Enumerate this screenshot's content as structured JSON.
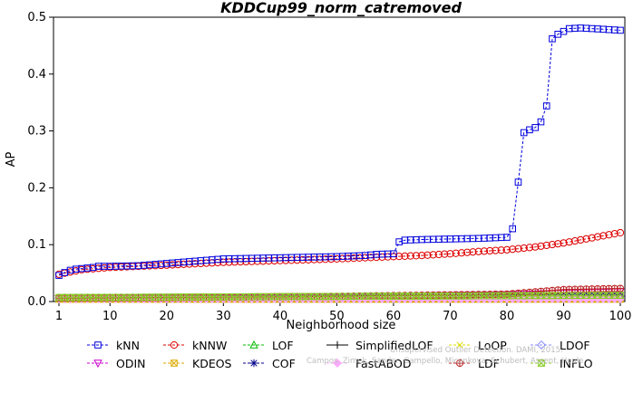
{
  "chart_data": {
    "type": "line",
    "title": "KDDCup99_norm_catremoved",
    "xlabel": "Neighborhood size",
    "ylabel": "AP",
    "xlim": [
      1,
      100
    ],
    "ylim": [
      0,
      0.5
    ],
    "x_ticks": [
      1,
      10,
      20,
      30,
      40,
      50,
      60,
      70,
      80,
      90,
      100
    ],
    "y_ticks": [
      0.0,
      0.1,
      0.2,
      0.3,
      0.4,
      0.5
    ],
    "x_tick_labels": [
      "1",
      "10",
      "20",
      "30",
      "40",
      "50",
      "60",
      "70",
      "80",
      "90",
      "100"
    ],
    "y_tick_labels": [
      "0.0",
      "0.1",
      "0.2",
      "0.3",
      "0.4",
      "0.5"
    ],
    "grid": false,
    "legend_position": "bottom",
    "series": [
      {
        "name": "kNN",
        "color": "#0000dd",
        "marker": "square",
        "dash": true,
        "points": [
          [
            1,
            0.046
          ],
          [
            2,
            0.051
          ],
          [
            3,
            0.055
          ],
          [
            4,
            0.057
          ],
          [
            5,
            0.058
          ],
          [
            6,
            0.059
          ],
          [
            7,
            0.06
          ],
          [
            8,
            0.062
          ],
          [
            9,
            0.062
          ],
          [
            10,
            0.062
          ],
          [
            15,
            0.063
          ],
          [
            20,
            0.067
          ],
          [
            25,
            0.071
          ],
          [
            30,
            0.075
          ],
          [
            35,
            0.076
          ],
          [
            40,
            0.077
          ],
          [
            45,
            0.078
          ],
          [
            50,
            0.079
          ],
          [
            55,
            0.081
          ],
          [
            57,
            0.083
          ],
          [
            60,
            0.084
          ],
          [
            61,
            0.105
          ],
          [
            62,
            0.108
          ],
          [
            65,
            0.109
          ],
          [
            70,
            0.11
          ],
          [
            75,
            0.111
          ],
          [
            80,
            0.113
          ],
          [
            81,
            0.128
          ],
          [
            82,
            0.21
          ],
          [
            83,
            0.297
          ],
          [
            84,
            0.302
          ],
          [
            85,
            0.306
          ],
          [
            86,
            0.316
          ],
          [
            87,
            0.344
          ],
          [
            88,
            0.462
          ],
          [
            89,
            0.47
          ],
          [
            90,
            0.475
          ],
          [
            91,
            0.48
          ],
          [
            93,
            0.481
          ],
          [
            95,
            0.48
          ],
          [
            100,
            0.477
          ]
        ]
      },
      {
        "name": "kNNW",
        "color": "#dd0000",
        "marker": "circle",
        "dash": true,
        "points": [
          [
            1,
            0.048
          ],
          [
            5,
            0.056
          ],
          [
            10,
            0.06
          ],
          [
            20,
            0.064
          ],
          [
            30,
            0.069
          ],
          [
            40,
            0.072
          ],
          [
            50,
            0.075
          ],
          [
            60,
            0.079
          ],
          [
            65,
            0.081
          ],
          [
            70,
            0.084
          ],
          [
            75,
            0.088
          ],
          [
            80,
            0.091
          ],
          [
            85,
            0.096
          ],
          [
            90,
            0.103
          ],
          [
            95,
            0.112
          ],
          [
            100,
            0.121
          ]
        ]
      },
      {
        "name": "LOF",
        "color": "#00bb00",
        "marker": "triangle-up",
        "dash": true,
        "points": [
          [
            1,
            0.006
          ],
          [
            50,
            0.007
          ],
          [
            100,
            0.009
          ]
        ]
      },
      {
        "name": "SimplifiedLOF",
        "color": "#000000",
        "marker": "plus",
        "dash": false,
        "points": [
          [
            1,
            0.006
          ],
          [
            50,
            0.008
          ],
          [
            100,
            0.01
          ]
        ]
      },
      {
        "name": "LoOP",
        "color": "#dddd00",
        "marker": "cross",
        "dash": true,
        "points": [
          [
            1,
            0.005
          ],
          [
            50,
            0.006
          ],
          [
            100,
            0.007
          ]
        ]
      },
      {
        "name": "LDOF",
        "color": "#8888ff",
        "marker": "diamond",
        "dash": true,
        "points": [
          [
            1,
            0.005
          ],
          [
            50,
            0.007
          ],
          [
            100,
            0.009
          ]
        ]
      },
      {
        "name": "ODIN",
        "color": "#cc00cc",
        "marker": "triangle-down",
        "dash": true,
        "points": [
          [
            1,
            0.005
          ],
          [
            50,
            0.008
          ],
          [
            80,
            0.012
          ],
          [
            100,
            0.017
          ]
        ]
      },
      {
        "name": "KDEOS",
        "color": "#ddaa00",
        "marker": "square-x",
        "dash": true,
        "points": [
          [
            1,
            0.004
          ],
          [
            100,
            0.004
          ]
        ]
      },
      {
        "name": "COF",
        "color": "#000088",
        "marker": "asterisk",
        "dash": true,
        "points": [
          [
            1,
            0.006
          ],
          [
            50,
            0.008
          ],
          [
            100,
            0.009
          ]
        ]
      },
      {
        "name": "FastABOD",
        "color": "#ffaaff",
        "marker": "diamond-filled",
        "dash": true,
        "points": [
          [
            1,
            0.005
          ],
          [
            100,
            0.005
          ]
        ]
      },
      {
        "name": "LDF",
        "color": "#bb2222",
        "marker": "circle-plus",
        "dash": true,
        "points": [
          [
            1,
            0.006
          ],
          [
            50,
            0.009
          ],
          [
            80,
            0.013
          ],
          [
            85,
            0.017
          ],
          [
            90,
            0.021
          ],
          [
            100,
            0.023
          ]
        ]
      },
      {
        "name": "INFLO",
        "color": "#88cc22",
        "marker": "square-hourglass",
        "dash": true,
        "points": [
          [
            1,
            0.007
          ],
          [
            50,
            0.009
          ],
          [
            100,
            0.011
          ]
        ]
      }
    ]
  },
  "watermark": {
    "line1": "Unsupervised Outlier Detection. DAMI, 2015.",
    "line2": "Campos, Zimek, Sander, Campello, Micenkova, Schubert, Assent, Houle"
  }
}
